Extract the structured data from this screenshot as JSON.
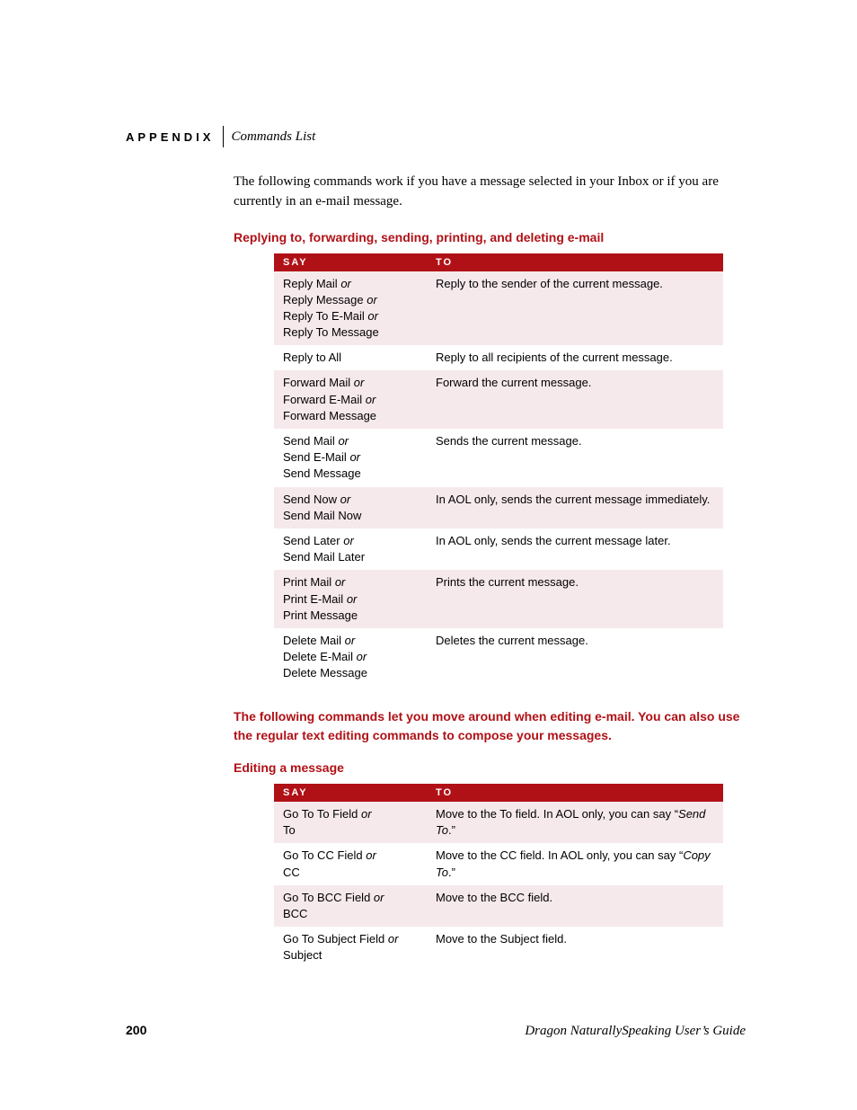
{
  "header": {
    "appendix_label": "APPENDIX",
    "section": "Commands List"
  },
  "intro": "The following commands work if you have a message selected in your Inbox or if you are currently in an e-mail message.",
  "table1": {
    "title": "Replying to, forwarding, sending, printing, and deleting e-mail",
    "columns": {
      "say": "SAY",
      "to": "TO"
    },
    "rows": [
      {
        "say_parts": [
          "Reply Mail",
          "Reply Message",
          "Reply To E-Mail",
          "Reply To Message"
        ],
        "to": "Reply to the sender of the current message."
      },
      {
        "say_parts": [
          "Reply to All"
        ],
        "to": "Reply to all recipients of the current message."
      },
      {
        "say_parts": [
          "Forward Mail",
          "Forward E-Mail",
          "Forward Message"
        ],
        "to": "Forward the current message."
      },
      {
        "say_parts": [
          "Send Mail",
          "Send E-Mail",
          "Send Message"
        ],
        "to": "Sends the current message."
      },
      {
        "say_parts": [
          "Send Now",
          "Send Mail Now"
        ],
        "to": "In AOL only, sends the current message immediately."
      },
      {
        "say_parts": [
          "Send Later",
          "Send Mail Later"
        ],
        "to": "In AOL only, sends the current message later."
      },
      {
        "say_parts": [
          "Print Mail",
          "Print E-Mail",
          "Print Message"
        ],
        "to": "Prints the current message."
      },
      {
        "say_parts": [
          "Delete Mail",
          "Delete E-Mail",
          "Delete Message"
        ],
        "to": "Deletes the current message."
      }
    ]
  },
  "mid_para": "The following commands let you move around when editing e-mail. You can also use the regular text editing commands to compose your messages.",
  "table2": {
    "title": "Editing a message",
    "columns": {
      "say": "SAY",
      "to": "TO"
    },
    "rows": [
      {
        "say_parts": [
          "Go To To Field",
          "To"
        ],
        "to_pre": "Move to the To field. In AOL only, you can say “",
        "to_italic": "Send To",
        "to_post": ".”"
      },
      {
        "say_parts": [
          "Go To CC Field",
          "CC"
        ],
        "to_pre": "Move to the CC field. In AOL only, you can say “",
        "to_italic": "Copy To",
        "to_post": ".”"
      },
      {
        "say_parts": [
          "Go To BCC Field",
          "BCC"
        ],
        "to_pre": "Move to the BCC field.",
        "to_italic": "",
        "to_post": ""
      },
      {
        "say_parts": [
          "Go To Subject Field",
          "Subject"
        ],
        "to_pre": "Move to the Subject field.",
        "to_italic": "",
        "to_post": ""
      }
    ]
  },
  "footer": {
    "page": "200",
    "title": "Dragon NaturallySpeaking User’s Guide"
  },
  "or_word": "or"
}
